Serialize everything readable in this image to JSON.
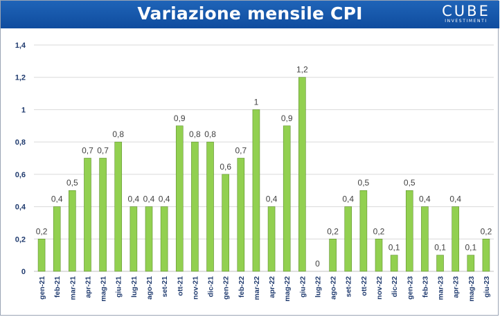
{
  "header": {
    "title": "Variazione mensile CPI",
    "logo_text": "CUBE",
    "logo_subtext": "INVESTIMENTI"
  },
  "colors": {
    "header_bg": "#1258a8",
    "bar_fill": "#92d050",
    "bar_stroke": "#5f8f2e",
    "axis_text": "#1f3a6e",
    "grid": "#d9d9d9"
  },
  "chart_data": {
    "type": "bar",
    "title": "Variazione mensile CPI",
    "categories": [
      "gen-21",
      "feb-21",
      "mar-21",
      "apr-21",
      "mag-21",
      "giu-21",
      "lug-21",
      "ago-21",
      "set-21",
      "ott-21",
      "nov-21",
      "dic-21",
      "gen-22",
      "feb-22",
      "mar-22",
      "apr-22",
      "mag-22",
      "giu-22",
      "lug-22",
      "ago-22",
      "set-22",
      "ott-22",
      "nov-22",
      "dic-22",
      "gen-23",
      "feb-23",
      "mar-23",
      "apr-23",
      "mag-23",
      "giu-23"
    ],
    "values": [
      0.2,
      0.4,
      0.5,
      0.7,
      0.7,
      0.8,
      0.4,
      0.4,
      0.4,
      0.9,
      0.8,
      0.8,
      0.6,
      0.7,
      1,
      0.4,
      0.9,
      1.2,
      0,
      0.2,
      0.4,
      0.5,
      0.2,
      0.1,
      0.5,
      0.4,
      0.1,
      0.4,
      0.1,
      0.2
    ],
    "value_labels": [
      "0,2",
      "0,4",
      "0,5",
      "0,7",
      "0,7",
      "0,8",
      "0,4",
      "0,4",
      "0,4",
      "0,9",
      "0,8",
      "0,8",
      "0,6",
      "0,7",
      "1",
      "0,4",
      "0,9",
      "1,2",
      "0",
      "0,2",
      "0,4",
      "0,5",
      "0,2",
      "0,1",
      "0,5",
      "0,4",
      "0,1",
      "0,4",
      "0,1",
      "0,2"
    ],
    "ylim": [
      0,
      1.4
    ],
    "yticks": [
      "0",
      "0,2",
      "0,4",
      "0,6",
      "0,8",
      "1",
      "1,2",
      "1,4"
    ],
    "xlabel": "",
    "ylabel": "",
    "grid": true,
    "legend": "none"
  }
}
